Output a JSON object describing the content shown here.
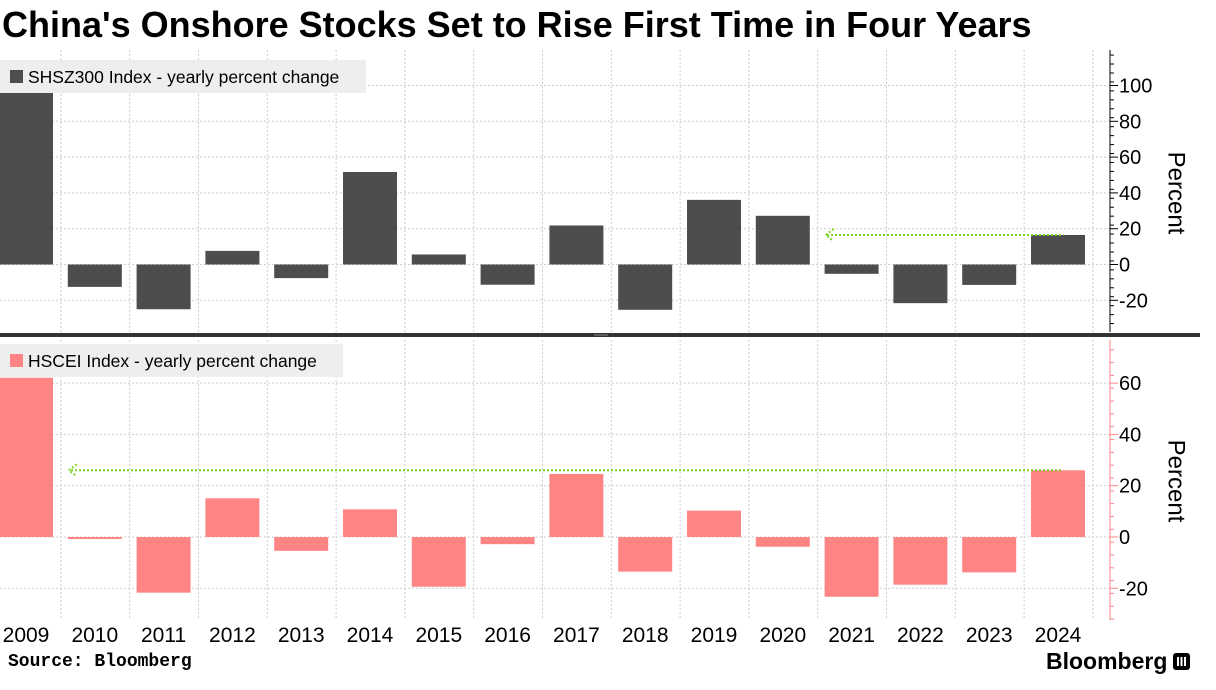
{
  "title": "China's Onshore Stocks Set to Rise First Time in Four Years",
  "source": "Source: Bloomberg",
  "brand": "Bloomberg",
  "brand_icon": "bloomberg-terminal-icon",
  "colors": {
    "shsz300_bar": "#4d4d4d",
    "hscei_bar": "#ff8585",
    "hscei_axis": "#ff8585",
    "arrow": "#7ed321",
    "grid": "#cccccc"
  },
  "chart_data": [
    {
      "type": "bar",
      "name": "top-panel",
      "legend": "SHSZ300 Index - yearly percent change",
      "ylabel": "Percent",
      "ylim": [
        -38,
        120
      ],
      "yticks": [
        100,
        80,
        60,
        40,
        20,
        0,
        -20
      ],
      "categories": [
        "2009",
        "2010",
        "2011",
        "2012",
        "2013",
        "2014",
        "2015",
        "2016",
        "2017",
        "2018",
        "2019",
        "2020",
        "2021",
        "2022",
        "2023",
        "2024"
      ],
      "values": [
        96.7,
        -12.5,
        -25.0,
        7.6,
        -7.6,
        51.7,
        5.6,
        -11.3,
        21.8,
        -25.3,
        36.1,
        27.2,
        -5.2,
        -21.6,
        -11.4,
        16.5
      ],
      "annotation": {
        "type": "dotted-arrow",
        "from_category": "2024",
        "to_category": "2021",
        "y": 16.5
      },
      "grid": true,
      "legend_position": "top-left"
    },
    {
      "type": "bar",
      "name": "bottom-panel",
      "legend": "HSCEI Index - yearly percent change",
      "ylabel": "Percent",
      "ylim": [
        -32,
        78
      ],
      "yticks": [
        60,
        40,
        20,
        0,
        -20
      ],
      "categories": [
        "2009",
        "2010",
        "2011",
        "2012",
        "2013",
        "2014",
        "2015",
        "2016",
        "2017",
        "2018",
        "2019",
        "2020",
        "2021",
        "2022",
        "2023",
        "2024"
      ],
      "values": [
        62.1,
        -0.8,
        -21.7,
        15.1,
        -5.4,
        10.8,
        -19.4,
        -2.8,
        24.6,
        -13.5,
        10.3,
        -3.8,
        -23.3,
        -18.6,
        -13.8,
        26.0
      ],
      "annotation": {
        "type": "dotted-arrow",
        "from_category": "2024",
        "to_category": "2010",
        "y": 26.0
      },
      "grid": true,
      "legend_position": "top-left"
    }
  ]
}
